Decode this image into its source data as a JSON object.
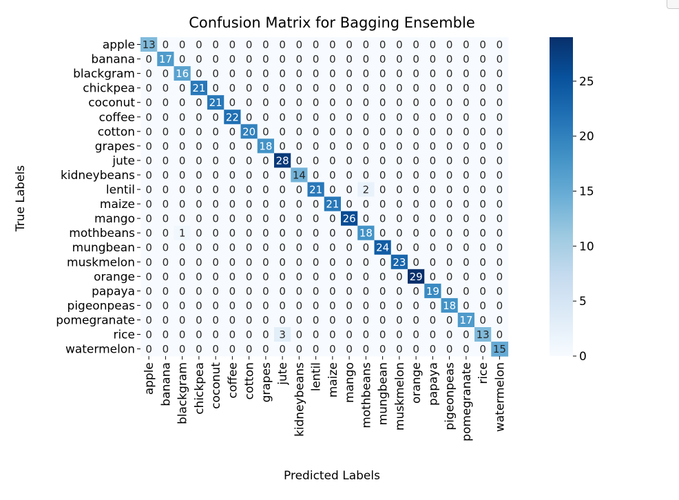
{
  "chart_data": {
    "type": "heatmap",
    "title": "Confusion Matrix for Bagging Ensemble",
    "xlabel": "Predicted Labels",
    "ylabel": "True Labels",
    "colormap": "Blues",
    "vmin": 0,
    "vmax": 29,
    "colorbar_ticks": [
      0,
      5,
      10,
      15,
      20,
      25
    ],
    "labels": [
      "apple",
      "banana",
      "blackgram",
      "chickpea",
      "coconut",
      "coffee",
      "cotton",
      "grapes",
      "jute",
      "kidneybeans",
      "lentil",
      "maize",
      "mango",
      "mothbeans",
      "mungbean",
      "muskmelon",
      "orange",
      "papaya",
      "pigeonpeas",
      "pomegranate",
      "rice",
      "watermelon"
    ],
    "diagonal": [
      13,
      17,
      16,
      21,
      21,
      22,
      20,
      18,
      28,
      14,
      21,
      21,
      26,
      18,
      24,
      23,
      29,
      19,
      18,
      17,
      13,
      15
    ],
    "off_diagonal": [
      {
        "true": "lentil",
        "predicted": "mothbeans",
        "count": 2
      },
      {
        "true": "mothbeans",
        "predicted": "blackgram",
        "count": 1
      },
      {
        "true": "rice",
        "predicted": "jute",
        "count": 3
      }
    ]
  },
  "window": {
    "corner_control_icon": "window-corner-icon"
  }
}
